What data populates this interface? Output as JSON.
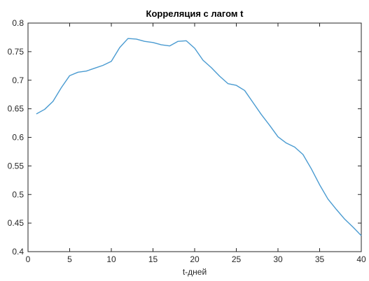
{
  "chart_data": {
    "type": "line",
    "title": "Корреляция с лагом t",
    "xlabel": "t-дней",
    "ylabel": "",
    "xlim": [
      0,
      40
    ],
    "ylim": [
      0.4,
      0.8
    ],
    "grid": false,
    "xticks": [
      "0",
      "5",
      "10",
      "15",
      "20",
      "25",
      "30",
      "35",
      "40"
    ],
    "yticks": [
      "0.4",
      "0.45",
      "0.5",
      "0.55",
      "0.6",
      "0.65",
      "0.7",
      "0.75",
      "0.8"
    ],
    "series": [
      {
        "color": "#4a9bd1",
        "x": [
          1,
          2,
          3,
          4,
          5,
          6,
          7,
          8,
          9,
          10,
          11,
          12,
          13,
          14,
          15,
          16,
          17,
          18,
          19,
          20,
          21,
          22,
          23,
          24,
          25,
          26,
          27,
          28,
          29,
          30,
          31,
          32,
          33,
          34,
          35,
          36,
          37,
          38,
          39,
          40
        ],
        "y": [
          0.641,
          0.649,
          0.663,
          0.687,
          0.708,
          0.714,
          0.716,
          0.721,
          0.726,
          0.733,
          0.757,
          0.773,
          0.772,
          0.768,
          0.766,
          0.762,
          0.76,
          0.768,
          0.769,
          0.756,
          0.735,
          0.722,
          0.707,
          0.694,
          0.691,
          0.682,
          0.661,
          0.64,
          0.621,
          0.601,
          0.59,
          0.583,
          0.57,
          0.545,
          0.517,
          0.492,
          0.474,
          0.457,
          0.443,
          0.428
        ]
      }
    ]
  }
}
